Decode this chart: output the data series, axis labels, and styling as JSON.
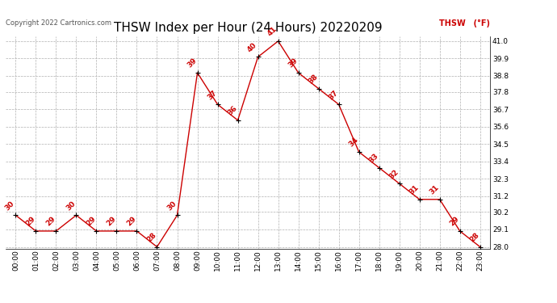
{
  "title": "THSW Index per Hour (24 Hours) 20220209",
  "copyright": "Copyright 2022 Cartronics.com",
  "legend_label": "THSW (°F)",
  "hours": [
    "00:00",
    "01:00",
    "02:00",
    "03:00",
    "04:00",
    "05:00",
    "06:00",
    "07:00",
    "08:00",
    "09:00",
    "10:00",
    "11:00",
    "12:00",
    "13:00",
    "14:00",
    "15:00",
    "16:00",
    "17:00",
    "18:00",
    "19:00",
    "20:00",
    "21:00",
    "22:00",
    "23:00"
  ],
  "values": [
    30,
    29,
    29,
    30,
    29,
    29,
    29,
    28,
    30,
    39,
    37,
    36,
    40,
    41,
    39,
    38,
    37,
    34,
    33,
    32,
    31,
    31,
    29,
    28
  ],
  "line_color": "#cc0000",
  "marker_color": "#000000",
  "grid_color": "#b0b0b0",
  "background_color": "#ffffff",
  "ylim_min": 27.9,
  "ylim_max": 41.3,
  "yticks": [
    28.0,
    29.1,
    30.2,
    31.2,
    32.3,
    33.4,
    34.5,
    35.6,
    36.7,
    37.8,
    38.8,
    39.9,
    41.0
  ],
  "title_fontsize": 11,
  "label_fontsize": 6.5,
  "tick_fontsize": 6.5,
  "copyright_fontsize": 6,
  "legend_fontsize": 7
}
